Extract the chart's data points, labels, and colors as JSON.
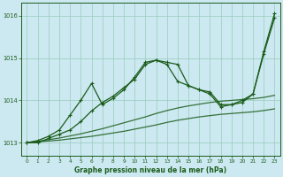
{
  "bg_color": "#cce8f0",
  "grid_color": "#99ccbb",
  "line_color": "#1a5c1a",
  "marker_color": "#1a5c1a",
  "xlabel": "Graphe pression niveau de la mer (hPa)",
  "xlabel_color": "#1a5c1a",
  "xlim": [
    -0.5,
    23.5
  ],
  "ylim": [
    1012.7,
    1016.3
  ],
  "yticks": [
    1013,
    1014,
    1015,
    1016
  ],
  "xticks": [
    0,
    1,
    2,
    3,
    4,
    5,
    6,
    7,
    8,
    9,
    10,
    11,
    12,
    13,
    14,
    15,
    16,
    17,
    18,
    19,
    20,
    21,
    22,
    23
  ],
  "y_straight1": [
    1013.0,
    1013.02,
    1013.04,
    1013.06,
    1013.09,
    1013.12,
    1013.15,
    1013.19,
    1013.23,
    1013.27,
    1013.32,
    1013.37,
    1013.42,
    1013.48,
    1013.53,
    1013.57,
    1013.61,
    1013.64,
    1013.67,
    1013.69,
    1013.71,
    1013.73,
    1013.76,
    1013.8
  ],
  "y_straight2": [
    1013.0,
    1013.03,
    1013.07,
    1013.11,
    1013.16,
    1013.21,
    1013.27,
    1013.33,
    1013.4,
    1013.47,
    1013.54,
    1013.61,
    1013.69,
    1013.76,
    1013.82,
    1013.87,
    1013.91,
    1013.95,
    1013.98,
    1014.0,
    1014.02,
    1014.04,
    1014.07,
    1014.12
  ],
  "y_wave1": [
    1013.0,
    1013.0,
    1013.1,
    1013.2,
    1013.3,
    1013.5,
    1013.75,
    1013.95,
    1014.1,
    1014.3,
    1014.5,
    1014.85,
    1014.95,
    1014.85,
    1014.45,
    1014.35,
    1014.25,
    1014.2,
    1013.9,
    1013.9,
    1013.95,
    1014.15,
    1015.1,
    1015.95
  ],
  "y_wave2": [
    1013.0,
    1013.05,
    1013.15,
    1013.3,
    1013.65,
    1014.0,
    1014.4,
    1013.9,
    1014.05,
    1014.25,
    1014.55,
    1014.9,
    1014.95,
    1014.9,
    1014.85,
    1014.35,
    1014.25,
    1014.15,
    1013.85,
    1013.9,
    1014.0,
    1014.15,
    1015.15,
    1016.05
  ]
}
